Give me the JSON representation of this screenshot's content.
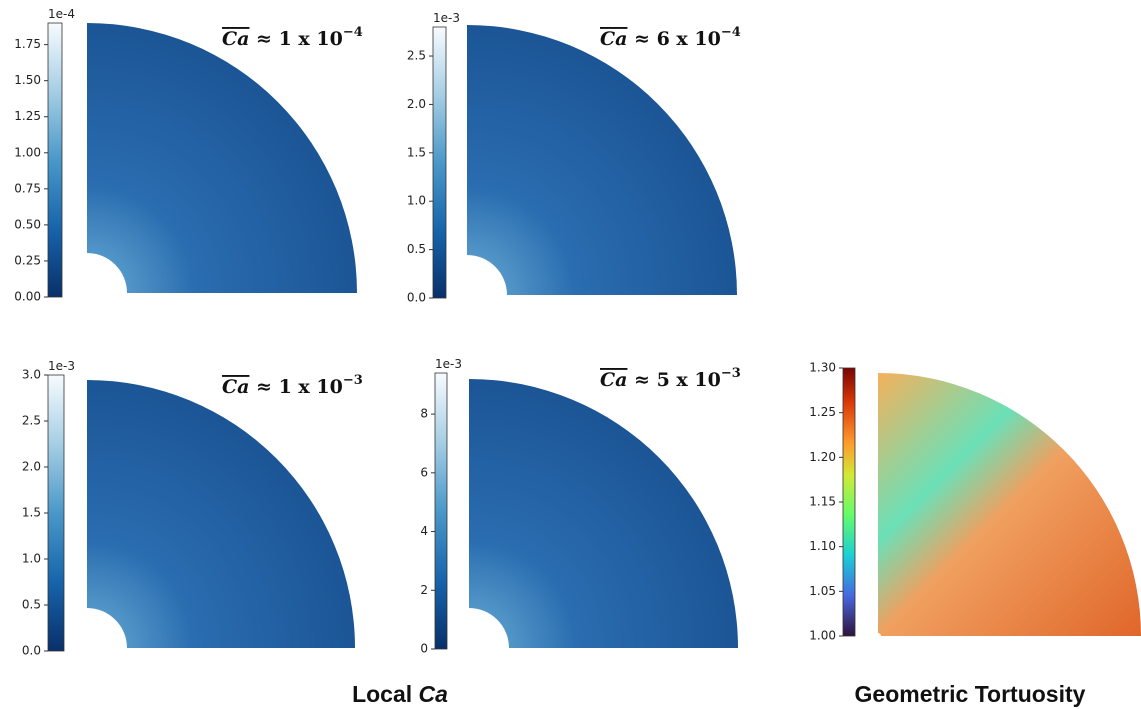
{
  "chart_data": [
    {
      "type": "heatmap",
      "colormap": "Blues",
      "clim": [
        0,
        1.9
      ],
      "cticks": [
        {
          "value": 0,
          "label": "0.00"
        },
        0.25,
        {
          "value": 0.5,
          "label": "0.50"
        },
        0.75,
        {
          "value": 1,
          "label": "1.00"
        },
        1.25,
        {
          "value": 1.5,
          "label": "1.50"
        },
        1.75
      ],
      "offset_label": "1e-4",
      "annotation": {
        "symbol": "Ca",
        "relation": " ≈ 1 x 10",
        "exponent": "−4"
      }
    },
    {
      "type": "heatmap",
      "colormap": "Blues",
      "clim": [
        0,
        2.8
      ],
      "cticks": [
        {
          "value": 0,
          "label": "0.0"
        },
        0.5,
        {
          "value": 1,
          "label": "1.0"
        },
        1.5,
        {
          "value": 2,
          "label": "2.0"
        },
        2.5
      ],
      "offset_label": "1e-3",
      "annotation": {
        "symbol": "Ca",
        "relation": " ≈ 6 x 10",
        "exponent": "−4"
      }
    },
    {
      "type": "heatmap",
      "colormap": "Blues",
      "clim": [
        0,
        3.0
      ],
      "cticks": [
        {
          "value": 0,
          "label": "0.0"
        },
        0.5,
        {
          "value": 1,
          "label": "1.0"
        },
        1.5,
        {
          "value": 2,
          "label": "2.0"
        },
        2.5,
        {
          "value": 3,
          "label": "3.0"
        }
      ],
      "offset_label": "1e-3",
      "annotation": {
        "symbol": "Ca",
        "relation": " ≈ 1 x 10",
        "exponent": "−3"
      }
    },
    {
      "type": "heatmap",
      "colormap": "Blues",
      "clim": [
        0,
        9.4
      ],
      "cticks": [
        0,
        2,
        4,
        6,
        8
      ],
      "offset_label": "1e-3",
      "annotation": {
        "symbol": "Ca",
        "relation": " ≈ 5 x 10",
        "exponent": "−3"
      }
    },
    {
      "type": "heatmap",
      "colormap": "Turbo",
      "clim": [
        1.0,
        1.3
      ],
      "cticks": [
        {
          "value": 1,
          "label": "1.00"
        },
        1.05,
        {
          "value": 1.1,
          "label": "1.10"
        },
        1.15,
        {
          "value": 1.2,
          "label": "1.20"
        },
        1.25,
        {
          "value": 1.3,
          "label": "1.30"
        }
      ]
    }
  ],
  "captions": [
    {
      "text": "Local ",
      "italic": "Ca"
    },
    {
      "text": "Geometric Tortuosity"
    }
  ]
}
